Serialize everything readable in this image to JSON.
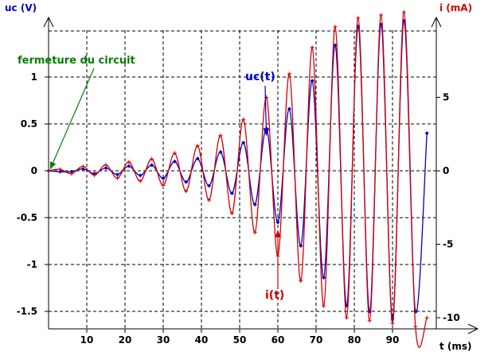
{
  "chart_data": {
    "type": "line",
    "x_axis": {
      "title": "t (ms)",
      "ticks": [
        10,
        20,
        30,
        40,
        50,
        60,
        70,
        80,
        90
      ],
      "range": [
        0,
        104
      ]
    },
    "y_left": {
      "title": "uc (V)",
      "ticks": [
        1,
        0.5,
        0,
        -0.5,
        -1,
        -1.5
      ],
      "range": [
        -1.7,
        1.65
      ]
    },
    "y_right": {
      "title": "i (mA)",
      "ticks": [
        5,
        0,
        -5,
        -10
      ],
      "range": [
        -10.0,
        11.0
      ]
    },
    "grid": true,
    "series": [
      {
        "name": "uc(t)",
        "color": "#0000c8",
        "axis": "left",
        "x": [
          0,
          3,
          6,
          9,
          12,
          15,
          18,
          21,
          24,
          27,
          30,
          33,
          36,
          39,
          42,
          45,
          48,
          51,
          54,
          57,
          60,
          63,
          66,
          69,
          72,
          75,
          78,
          81,
          84,
          87,
          90,
          93,
          96,
          99
        ],
        "y": [
          0,
          -0.01,
          -0.01,
          0.02,
          -0.03,
          0.03,
          -0.04,
          0.05,
          -0.05,
          0.06,
          -0.08,
          0.1,
          -0.12,
          0.13,
          -0.16,
          0.2,
          -0.24,
          0.3,
          -0.36,
          0.45,
          -0.55,
          0.66,
          -0.8,
          0.96,
          -1.14,
          1.34,
          -1.44,
          1.54,
          -1.5,
          1.56,
          -1.58,
          1.6,
          -1.5,
          0.4
        ]
      },
      {
        "name": "i(t)",
        "color": "#d40000",
        "axis": "right",
        "x": [
          0,
          3,
          6,
          9,
          12,
          15,
          18,
          21,
          24,
          27,
          30,
          33,
          36,
          39,
          42,
          45,
          48,
          51,
          54,
          57,
          60,
          63,
          66,
          69,
          72,
          75,
          78,
          81,
          84,
          87,
          90,
          93,
          96,
          99
        ],
        "y": [
          0,
          0.1,
          -0.2,
          0.3,
          -0.3,
          0.4,
          -0.5,
          0.6,
          -0.7,
          0.8,
          -1.0,
          1.2,
          -1.4,
          1.7,
          -2.0,
          2.4,
          -2.9,
          3.5,
          -4.2,
          5.0,
          -5.8,
          6.6,
          -7.5,
          8.4,
          -9.2,
          9.8,
          -10.0,
          10.4,
          -10.2,
          10.6,
          -10.4,
          10.8,
          -10.6,
          -10.0
        ]
      }
    ],
    "annotations": [
      {
        "text": "fermeture du circuit",
        "color": "#008000",
        "target_t": 0,
        "target_y": 0
      },
      {
        "text": "uc(t)",
        "color": "#0000c8",
        "target_t": 57,
        "target_y": 0.35
      },
      {
        "text": "i(t)",
        "color": "#d40000",
        "target_t": 60,
        "target_y": -0.6
      }
    ]
  }
}
